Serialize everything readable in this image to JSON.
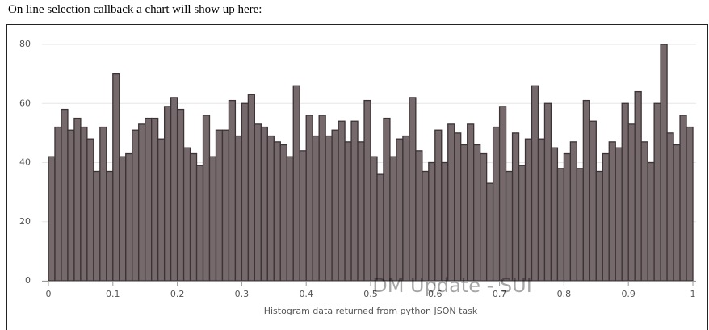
{
  "header": "On line selection callback a chart will show up here:",
  "watermark": "DM Update - SUI",
  "chart_data": {
    "type": "histogram",
    "x_label": "Histogram data returned from python JSON task",
    "bins": [
      0,
      0.01,
      0.02,
      0.03,
      0.04,
      0.05,
      0.06,
      0.07,
      0.08,
      0.09,
      0.1,
      0.11,
      0.12,
      0.13,
      0.14,
      0.15,
      0.16,
      0.17,
      0.18,
      0.19,
      0.2,
      0.21,
      0.22,
      0.23,
      0.24,
      0.25,
      0.26,
      0.27,
      0.28,
      0.29,
      0.3,
      0.31,
      0.32,
      0.33,
      0.34,
      0.35,
      0.36,
      0.37,
      0.38,
      0.39,
      0.4,
      0.41,
      0.42,
      0.43,
      0.44,
      0.45,
      0.46,
      0.47,
      0.48,
      0.49,
      0.5,
      0.51,
      0.52,
      0.53,
      0.54,
      0.55,
      0.56,
      0.57,
      0.58,
      0.59,
      0.6,
      0.61,
      0.62,
      0.63,
      0.64,
      0.65,
      0.66,
      0.67,
      0.68,
      0.69,
      0.7,
      0.71,
      0.72,
      0.73,
      0.74,
      0.75,
      0.76,
      0.77,
      0.78,
      0.79,
      0.8,
      0.81,
      0.82,
      0.83,
      0.84,
      0.85,
      0.86,
      0.87,
      0.88,
      0.89,
      0.9,
      0.91,
      0.92,
      0.93,
      0.94,
      0.95,
      0.96,
      0.97,
      0.98,
      0.99,
      1
    ],
    "values": [
      42,
      52,
      58,
      51,
      55,
      52,
      48,
      37,
      52,
      37,
      70,
      42,
      43,
      51,
      53,
      55,
      55,
      48,
      59,
      62,
      58,
      45,
      43,
      39,
      56,
      42,
      51,
      51,
      61,
      49,
      60,
      63,
      53,
      52,
      49,
      47,
      46,
      42,
      66,
      44,
      56,
      49,
      56,
      49,
      51,
      54,
      47,
      54,
      47,
      61,
      42,
      36,
      55,
      42,
      48,
      49,
      62,
      44,
      37,
      40,
      51,
      40,
      53,
      50,
      46,
      53,
      46,
      43,
      33,
      52,
      59,
      37,
      50,
      39,
      48,
      66,
      48,
      60,
      45,
      38,
      43,
      47,
      38,
      61,
      54,
      37,
      43,
      47,
      45,
      60,
      53,
      64,
      47,
      40,
      60,
      80,
      50,
      46,
      56,
      52
    ],
    "color": "#75696c",
    "xlim": [
      0,
      1
    ],
    "xticks": [
      0,
      0.1,
      0.2,
      0.3,
      0.4,
      0.5,
      0.6,
      0.7,
      0.8,
      0.9,
      1
    ],
    "ylim": [
      0,
      80
    ],
    "yticks": [
      0,
      20,
      40,
      60,
      80
    ],
    "grid": true
  }
}
